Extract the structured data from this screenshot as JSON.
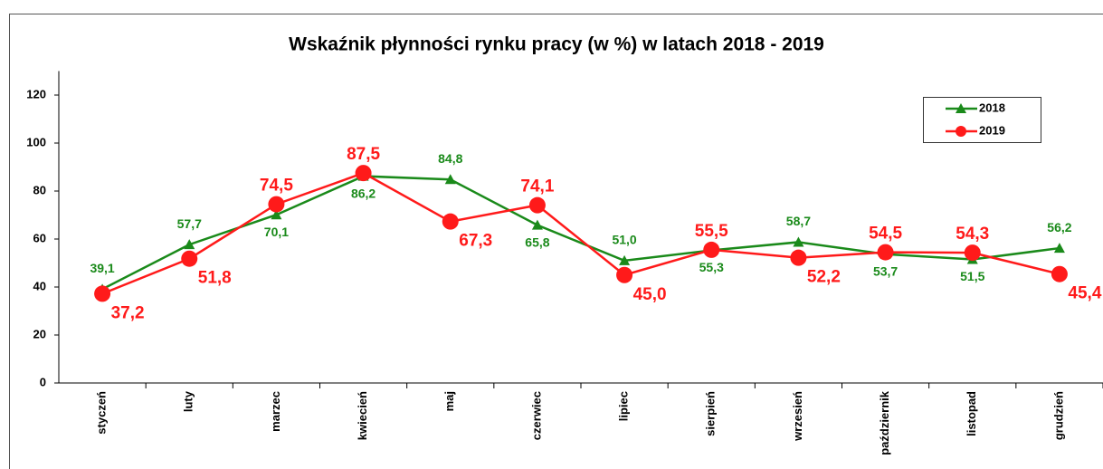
{
  "chart_data": {
    "type": "line",
    "title": "Wskaźnik płynności rynku pracy  (w %) w latach  2018  -  2019",
    "categories": [
      "styczeń",
      "luty",
      "marzec",
      "kwiecień",
      "maj",
      "czerwiec",
      "lipiec",
      "sierpień",
      "wrzesień",
      "październik",
      "listopad",
      "grudzień"
    ],
    "series": [
      {
        "name": "2018",
        "color": "#1a8a1a",
        "marker": "triangle",
        "values": [
          39.1,
          57.7,
          70.1,
          86.2,
          84.8,
          65.8,
          51.0,
          55.3,
          58.7,
          53.7,
          51.5,
          56.2
        ],
        "value_labels": [
          "39,1",
          "57,7",
          "70,1",
          "86,2",
          "84,8",
          "65,8",
          "51,0",
          "55,3",
          "58,7",
          "53,7",
          "51,5",
          "56,2"
        ]
      },
      {
        "name": "2019",
        "color": "#ff1a1a",
        "marker": "circle",
        "values": [
          37.2,
          51.8,
          74.5,
          87.5,
          67.3,
          74.1,
          45.0,
          55.5,
          52.2,
          54.5,
          54.3,
          45.4
        ],
        "value_labels": [
          "37,2",
          "51,8",
          "74,5",
          "87,5",
          "67,3",
          "74,1",
          "45,0",
          "55,5",
          "52,2",
          "54,5",
          "54,3",
          "45,4"
        ]
      }
    ],
    "ylim": [
      0,
      130
    ],
    "yticks": [
      0,
      20,
      40,
      60,
      80,
      100,
      120
    ],
    "grid": false,
    "legend": "upper right"
  }
}
